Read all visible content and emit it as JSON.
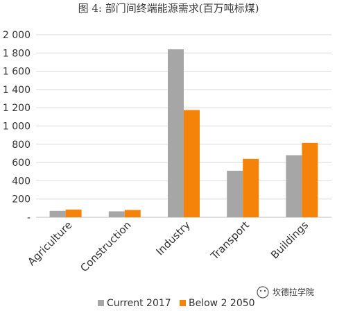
{
  "chart_data": {
    "type": "bar",
    "title": "图 4: 部门间终端能源需求(百万吨标煤)",
    "categories": [
      "Agriculture",
      "Construction",
      "Industry",
      "Transport",
      "Buildings"
    ],
    "series": [
      {
        "name": "Current  2017",
        "color": "#a6a6a6",
        "values": [
          70,
          65,
          1840,
          510,
          680
        ]
      },
      {
        "name": "Below 2 2050",
        "color": "#f5830a",
        "values": [
          85,
          80,
          1175,
          640,
          815
        ]
      }
    ],
    "ylim": [
      0,
      2000
    ],
    "yticks": [
      {
        "v": 0,
        "label": "-"
      },
      {
        "v": 200,
        "label": "200"
      },
      {
        "v": 400,
        "label": "400"
      },
      {
        "v": 600,
        "label": "600"
      },
      {
        "v": 800,
        "label": "800"
      },
      {
        "v": 1000,
        "label": "1 000"
      },
      {
        "v": 1200,
        "label": "1 200"
      },
      {
        "v": 1400,
        "label": "1 400"
      },
      {
        "v": 1600,
        "label": "1 600"
      },
      {
        "v": 1800,
        "label": "1 800"
      },
      {
        "v": 2000,
        "label": "2 000"
      }
    ],
    "grid": true,
    "legend": "bottom"
  },
  "watermark": "坎德拉学院"
}
